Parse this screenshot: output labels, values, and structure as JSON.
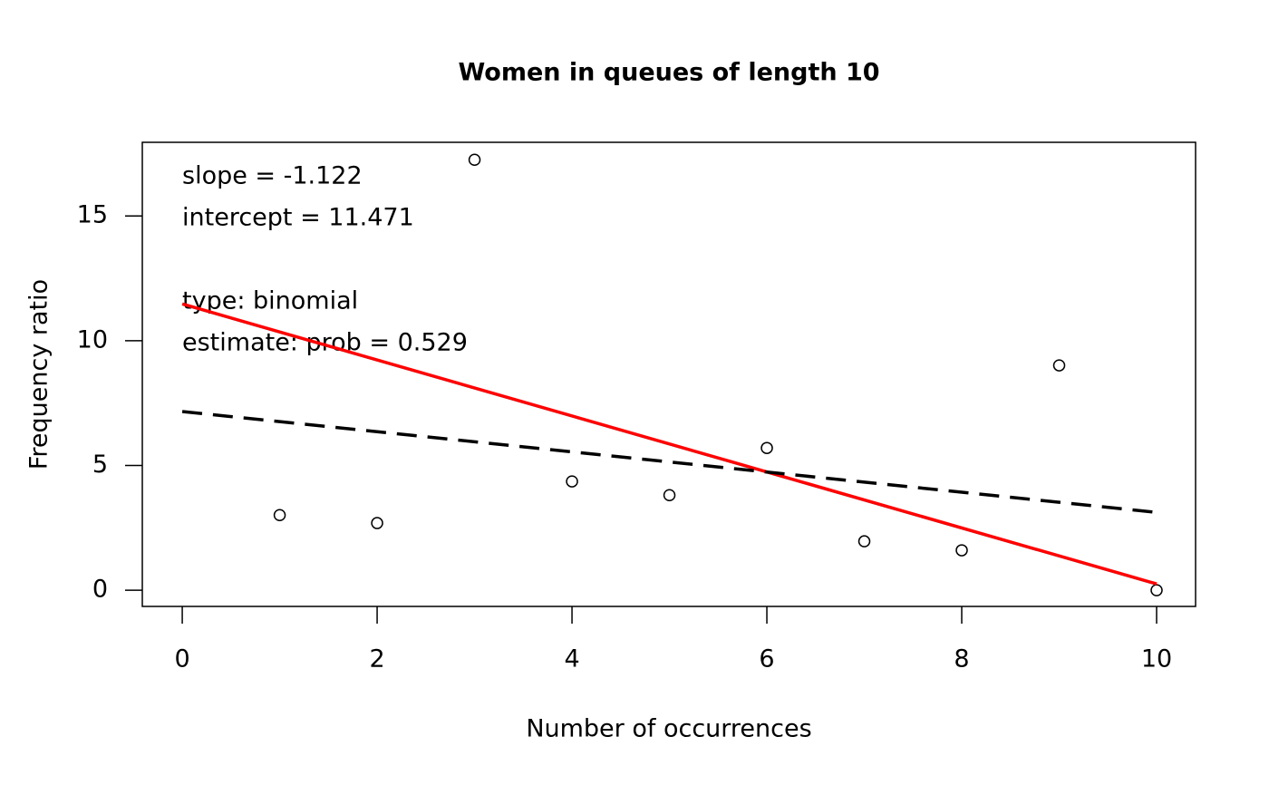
{
  "chart_data": {
    "type": "scatter",
    "title": "Women in queues of length 10",
    "x_label": "Number of occurrences",
    "y_label": "Frequency ratio",
    "x": [
      1,
      2,
      3,
      4,
      5,
      6,
      7,
      8,
      9,
      10
    ],
    "series": [
      {
        "color": "#000000",
        "values": [
          3.01,
          2.69,
          17.25,
          4.36,
          3.81,
          5.7,
          1.96,
          1.6,
          9.01,
          0
        ]
      }
    ],
    "lines": [
      {
        "color": "#ff0000",
        "dashed": false,
        "x": [
          0,
          10
        ],
        "values": [
          11.471,
          0.251
        ]
      },
      {
        "color": "#000000",
        "dashed": true,
        "x": [
          0,
          10
        ],
        "values": [
          7.16,
          3.12
        ]
      }
    ],
    "annotations": [
      "slope = -1.122",
      "intercept = 11.471",
      "type: binomial",
      "estimate: prob = 0.529"
    ],
    "xlim": [
      -0.41,
      10.4
    ],
    "ylim": [
      -0.65,
      17.95
    ],
    "xticks": [
      0,
      2,
      4,
      6,
      8,
      10
    ],
    "yticks": [
      0,
      5,
      10,
      15
    ]
  }
}
